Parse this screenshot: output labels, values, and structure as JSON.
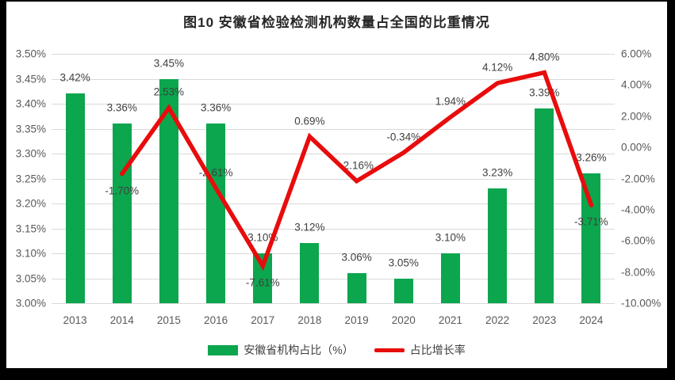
{
  "chart_data": {
    "type": "bar+line",
    "title": "图10 安徽省检验检测机构数量占全国的比重情况",
    "categories": [
      "2013",
      "2014",
      "2015",
      "2016",
      "2017",
      "2018",
      "2019",
      "2020",
      "2021",
      "2022",
      "2023",
      "2024"
    ],
    "series": [
      {
        "name": "安徽省机构占比（%）",
        "type": "bar",
        "axis": "left",
        "color": "#0ba64e",
        "values": [
          3.42,
          3.36,
          3.45,
          3.36,
          3.1,
          3.12,
          3.06,
          3.05,
          3.1,
          3.23,
          3.39,
          3.26
        ],
        "labels": [
          "3.42%",
          "3.36%",
          "3.45%",
          "3.36%",
          "3.10%",
          "3.12%",
          "3.06%",
          "3.05%",
          "3.10%",
          "3.23%",
          "3.39%",
          "3.26%"
        ]
      },
      {
        "name": "占比增长率",
        "type": "line",
        "axis": "right",
        "color": "#e80c0c",
        "values": [
          null,
          -1.7,
          2.53,
          -2.61,
          -7.61,
          0.69,
          -2.16,
          -0.34,
          1.94,
          4.12,
          4.8,
          -3.71
        ],
        "labels": [
          null,
          "-1.70%",
          "2.53%",
          "-2.61%",
          "-7.61%",
          "0.69%",
          "-2.16%",
          "-0.34%",
          "1.94%",
          "4.12%",
          "4.80%",
          "-3.71%"
        ],
        "label_below": [
          false,
          true,
          false,
          false,
          true,
          false,
          false,
          false,
          false,
          false,
          false,
          true
        ]
      }
    ],
    "left_axis": {
      "min": 3.0,
      "max": 3.5,
      "step": 0.05,
      "ticks": [
        "3.50%",
        "3.45%",
        "3.40%",
        "3.35%",
        "3.30%",
        "3.25%",
        "3.20%",
        "3.15%",
        "3.10%",
        "3.05%",
        "3.00%"
      ]
    },
    "right_axis": {
      "min": -10.0,
      "max": 6.0,
      "step": 2.0,
      "ticks": [
        "6.00%",
        "4.00%",
        "2.00%",
        "0.00%",
        "-2.00%",
        "-4.00%",
        "-6.00%",
        "-8.00%",
        "-10.00%"
      ]
    },
    "legend": {
      "position": "bottom",
      "items": [
        {
          "label": "安徽省机构占比（%）",
          "swatch": "bar",
          "color": "#0ba64e"
        },
        {
          "label": "占比增长率",
          "swatch": "line",
          "color": "#e80c0c"
        }
      ]
    },
    "grid": "horizontal-on"
  }
}
